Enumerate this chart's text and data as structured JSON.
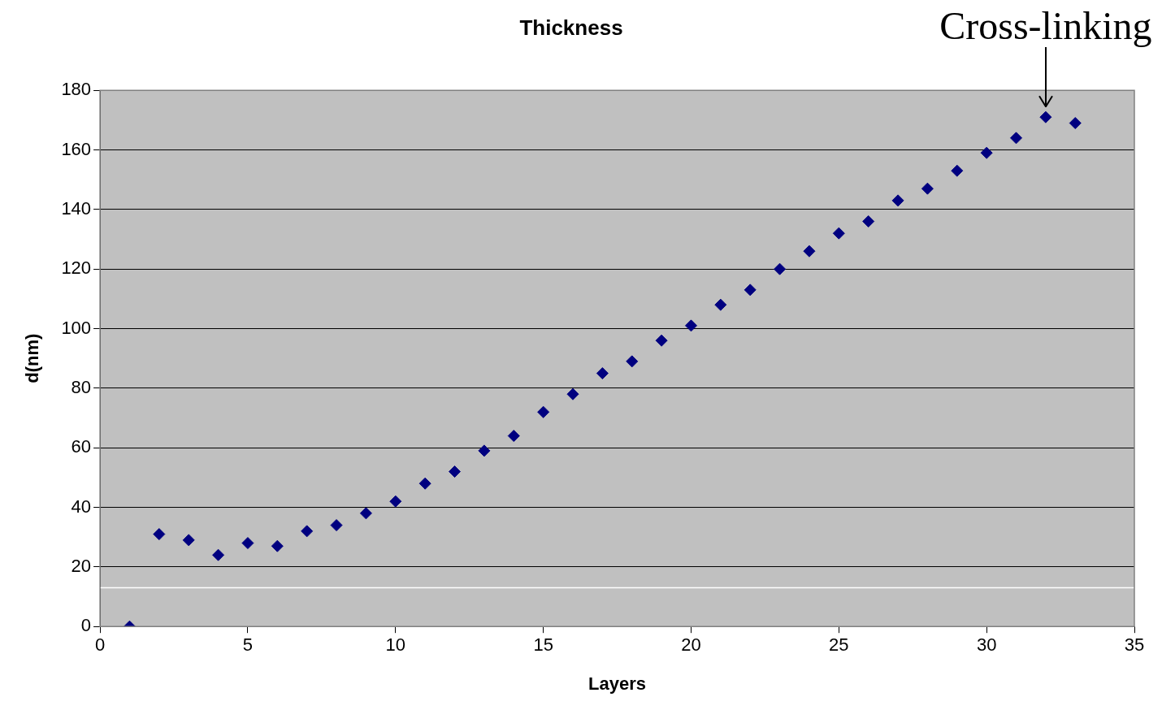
{
  "chart_data": {
    "type": "scatter",
    "title": "Thickness",
    "xlabel": "Layers",
    "ylabel": "d(nm)",
    "x": [
      1,
      2,
      3,
      4,
      5,
      6,
      7,
      8,
      9,
      10,
      11,
      12,
      13,
      14,
      15,
      16,
      17,
      18,
      19,
      20,
      21,
      22,
      23,
      24,
      25,
      26,
      27,
      28,
      29,
      30,
      31,
      32,
      33
    ],
    "series": [
      {
        "color": "#000080",
        "values": [
          0,
          31,
          29,
          24,
          28,
          27,
          32,
          34,
          38,
          42,
          48,
          52,
          59,
          64,
          72,
          78,
          85,
          89,
          96,
          101,
          108,
          113,
          120,
          126,
          132,
          136,
          143,
          147,
          153,
          159,
          164,
          171,
          169
        ]
      }
    ],
    "xlim": [
      0,
      35
    ],
    "xticks": [
      0,
      5,
      10,
      15,
      20,
      25,
      30,
      35
    ],
    "ylim": [
      0,
      180
    ],
    "yticks": [
      0,
      20,
      40,
      60,
      80,
      100,
      120,
      140,
      160,
      180
    ],
    "grid": "y",
    "legend": false,
    "marker": "diamond",
    "ref_lines": [
      {
        "axis": "y",
        "value": 13,
        "color": "#ffffff"
      }
    ],
    "annotations": [
      {
        "text": "Cross-linking",
        "x": 32,
        "y": 171
      }
    ]
  }
}
